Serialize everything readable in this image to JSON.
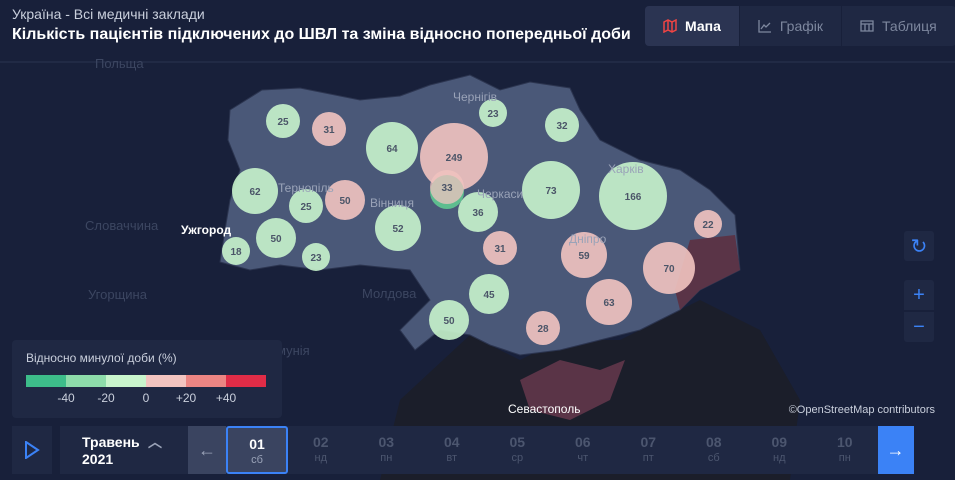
{
  "header": {
    "subtitle": "Україна - Всі медичні заклади",
    "title": "Кількість пацієнтів підключених до ШВЛ та зміна відносно попередньої доби"
  },
  "tabs": [
    {
      "label": "Мапа",
      "icon": "map-icon",
      "active": true
    },
    {
      "label": "Графік",
      "icon": "line-chart-icon"
    },
    {
      "label": "Таблиця",
      "icon": "table-icon"
    }
  ],
  "map_labels": {
    "poland": "Польща",
    "slovakia": "Словаччина",
    "hungary": "Угорщина",
    "moldova": "Молдова",
    "romania": "Румунія",
    "uzhhorod": "Ужгород",
    "ternopil": "Тернопіль",
    "vinnytsia": "Вінниця",
    "chernihiv": "Чернігів",
    "cherkasy": "Черкаси",
    "kharkiv": "Харків",
    "dnipro": "Дніпро",
    "sevastopol": "Севастополь"
  },
  "bubbles": [
    {
      "value": "25",
      "change": "down"
    },
    {
      "value": "31",
      "change": "up"
    },
    {
      "value": "64",
      "change": "down"
    },
    {
      "value": "249",
      "change": "up"
    },
    {
      "value": "33",
      "change": "up"
    },
    {
      "value": "23",
      "change": "down"
    },
    {
      "value": "32",
      "change": "down"
    },
    {
      "value": "62",
      "change": "down"
    },
    {
      "value": "25",
      "change": "down"
    },
    {
      "value": "50",
      "change": "up"
    },
    {
      "value": "52",
      "change": "down"
    },
    {
      "value": "36",
      "change": "down"
    },
    {
      "value": "73",
      "change": "down"
    },
    {
      "value": "166",
      "change": "down"
    },
    {
      "value": "22",
      "change": "up"
    },
    {
      "value": "31",
      "change": "up"
    },
    {
      "value": "59",
      "change": "up"
    },
    {
      "value": "70",
      "change": "up"
    },
    {
      "value": "18",
      "change": "down"
    },
    {
      "value": "50",
      "change": "down"
    },
    {
      "value": "23",
      "change": "down"
    },
    {
      "value": "45",
      "change": "down"
    },
    {
      "value": "50",
      "change": "down"
    },
    {
      "value": "28",
      "change": "up"
    },
    {
      "value": "63",
      "change": "up"
    }
  ],
  "legend": {
    "title": "Відносно минулої доби (%)",
    "colors": [
      "#3dbd8a",
      "#8ddcaa",
      "#c8f4cc",
      "#f2c4c0",
      "#ec8583",
      "#e02c47"
    ],
    "ticks": [
      "-40",
      "-20",
      "0",
      "+20",
      "+40"
    ]
  },
  "attribution": "©OpenStreetMap contributors",
  "timeline": {
    "month": "Травень",
    "year": "2021",
    "days": [
      {
        "n": "01",
        "w": "сб"
      },
      {
        "n": "02",
        "w": "нд"
      },
      {
        "n": "03",
        "w": "пн"
      },
      {
        "n": "04",
        "w": "вт"
      },
      {
        "n": "05",
        "w": "ср"
      },
      {
        "n": "06",
        "w": "чт"
      },
      {
        "n": "07",
        "w": "пт"
      },
      {
        "n": "08",
        "w": "сб"
      },
      {
        "n": "09",
        "w": "нд"
      },
      {
        "n": "10",
        "w": "пн"
      }
    ],
    "selected": "01"
  }
}
